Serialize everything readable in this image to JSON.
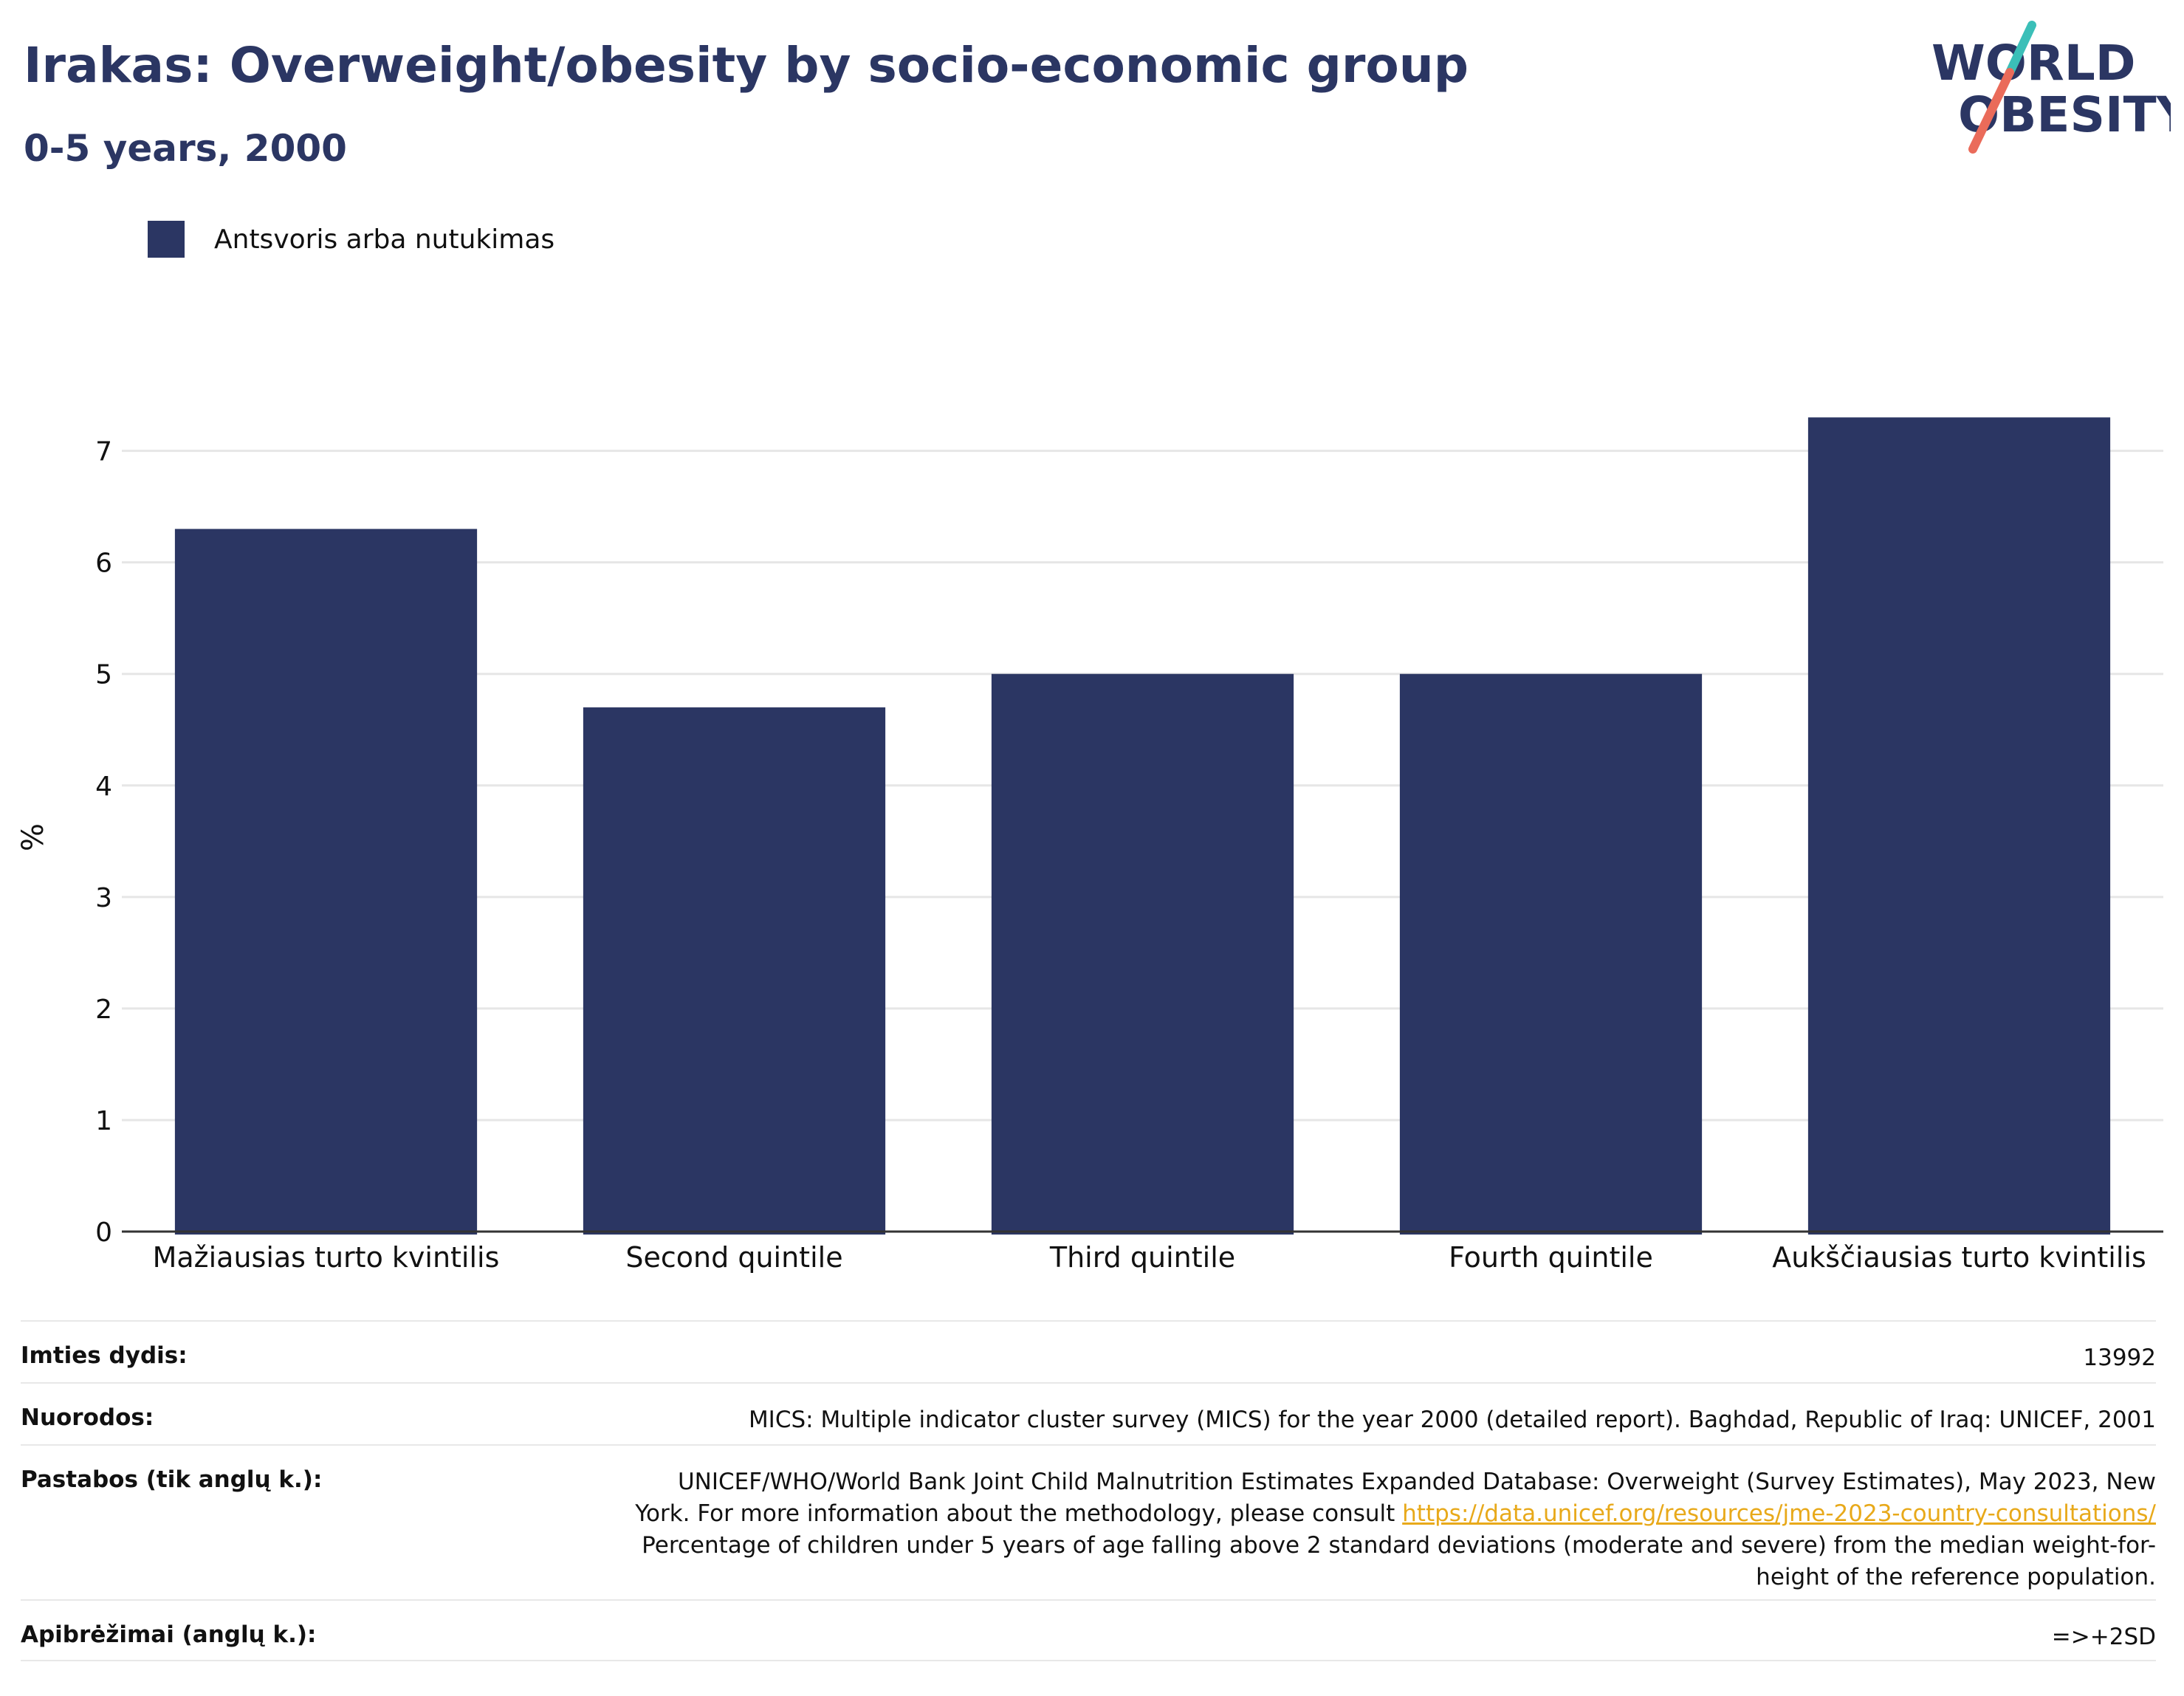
{
  "header": {
    "title": "Irakas: Overweight/obesity by socio-economic group",
    "subtitle": "0-5 years, 2000"
  },
  "logo": {
    "line1": "WORLD",
    "line2": "OBESITY",
    "colors": {
      "text": "#2b3663",
      "slash_teal": "#3bbfb8",
      "slash_coral": "#ea6b5a"
    }
  },
  "legend": {
    "label": "Antsvoris arba nutukimas"
  },
  "colors": {
    "bar": "#2b3663",
    "grid": "#e6e6e6",
    "axis": "#333333"
  },
  "chart_data": {
    "type": "bar",
    "categories": [
      "Mažiausias turto kvintilis",
      "Second quintile",
      "Third quintile",
      "Fourth quintile",
      "Aukščiausias turto kvintilis"
    ],
    "series": [
      {
        "name": "Antsvoris arba nutukimas",
        "values": [
          6.3,
          4.7,
          5.0,
          5.0,
          7.3
        ]
      }
    ],
    "ylabel": "%",
    "xlabel": "",
    "ylim": [
      0,
      7.6
    ],
    "yticks": [
      0,
      1,
      2,
      3,
      4,
      5,
      6,
      7
    ],
    "grid": true,
    "legend_position": "top-left"
  },
  "info": {
    "sample_size": {
      "label": "Imties dydis:",
      "value": "13992"
    },
    "references": {
      "label": "Nuorodos:",
      "value": "MICS: Multiple indicator cluster survey (MICS) for the year 2000 (detailed report). Baghdad, Republic of Iraq: UNICEF, 2001"
    },
    "notes": {
      "label": "Pastabos (tik anglų k.):",
      "line1": "UNICEF/WHO/World Bank Joint Child Malnutrition Estimates Expanded Database: Overweight (Survey Estimates), May 2023, New",
      "line2_prefix": "York. For more information about the methodology, please consult ",
      "link": "https://data.unicef.org/resources/jme-2023-country-consultations/",
      "line3": "Percentage of children under 5 years of age falling above 2 standard deviations (moderate and severe) from the median weight-for-",
      "line4": "height of the reference population."
    },
    "definitions": {
      "label": "Apibrėžimai (anglų k.):",
      "value": "=>+2SD"
    }
  }
}
